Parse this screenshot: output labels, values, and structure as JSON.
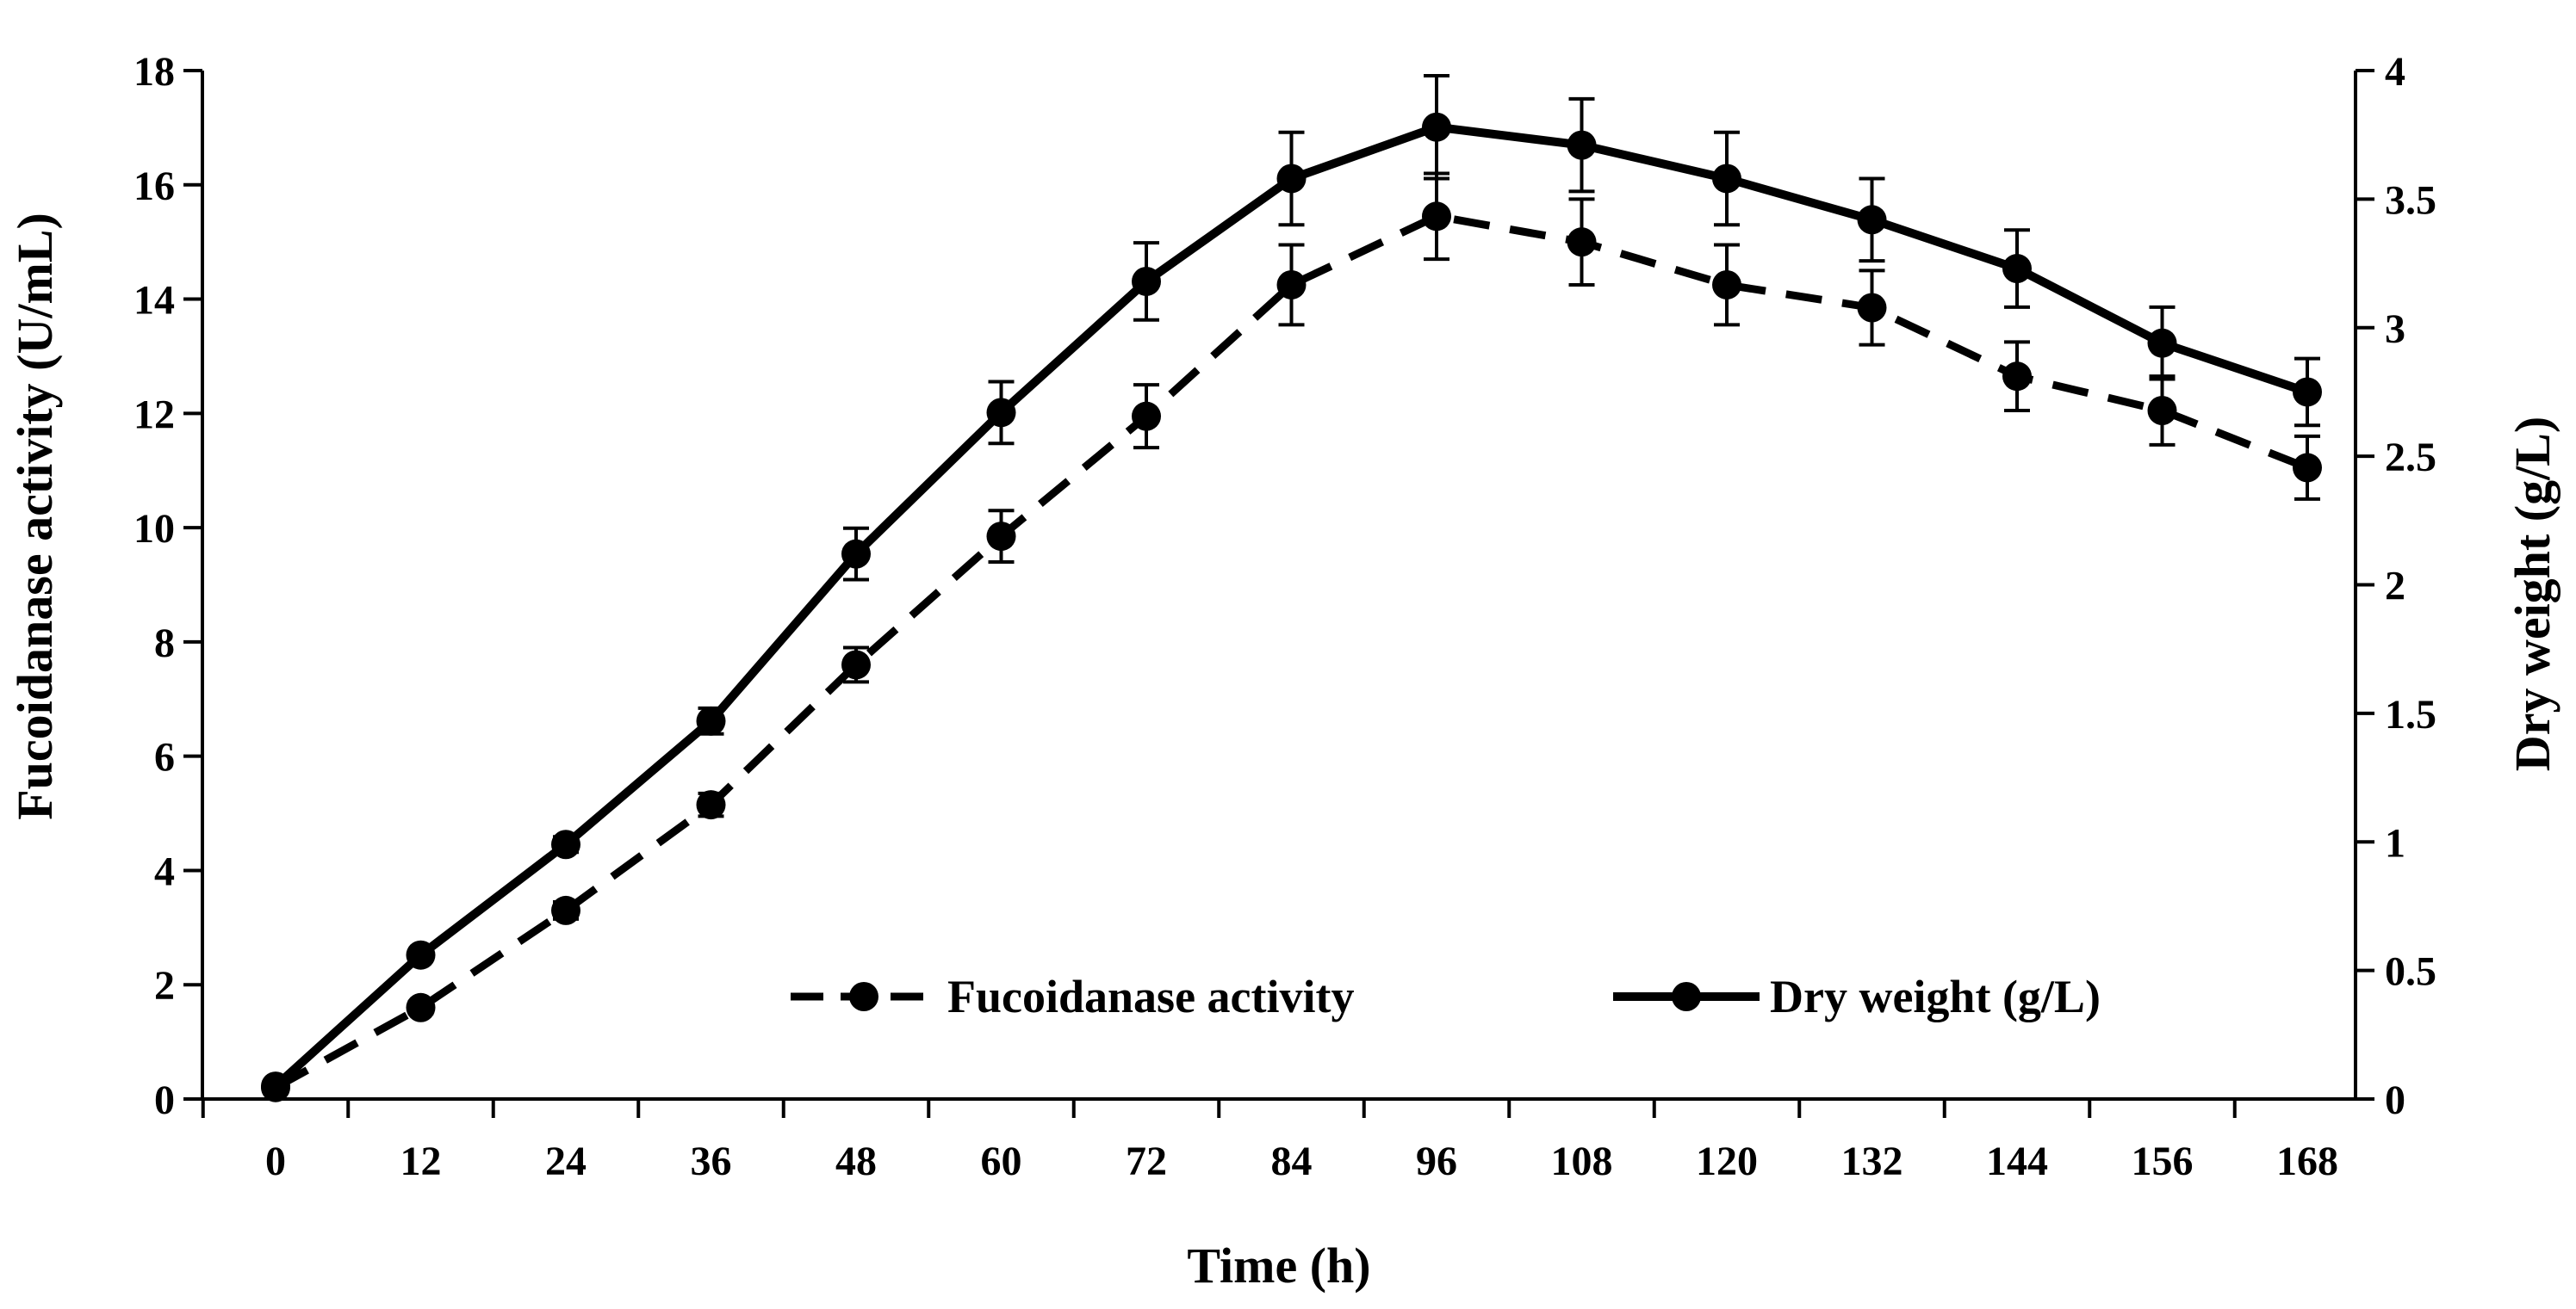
{
  "chart_data": {
    "type": "line",
    "title": "",
    "xlabel": "Time (h)",
    "ylabel_left": "Fucoidanase activity (U/mL)",
    "ylabel_right": "Dry weight (g/L)",
    "x": [
      0,
      12,
      24,
      36,
      48,
      60,
      72,
      84,
      96,
      108,
      120,
      132,
      144,
      156,
      168
    ],
    "x_tick_labels": [
      "0",
      "12",
      "24",
      "36",
      "48",
      "60",
      "72",
      "84",
      "96",
      "108",
      "120",
      "132",
      "144",
      "156",
      "168"
    ],
    "ylim_left": [
      0,
      18
    ],
    "y_left_ticks": [
      "0",
      "2",
      "4",
      "6",
      "8",
      "10",
      "12",
      "14",
      "16",
      "18"
    ],
    "ylim_right": [
      0,
      4
    ],
    "y_right_ticks": [
      "0",
      "0.5",
      "1",
      "1.5",
      "2",
      "2.5",
      "3",
      "3.5",
      "4"
    ],
    "grid": false,
    "legend_position": "bottom-center",
    "series": [
      {
        "name": "Fucoidanase activity",
        "axis": "left",
        "line_style": "dashed",
        "color": "#000000",
        "values": [
          0.2,
          1.6,
          3.3,
          5.15,
          7.6,
          9.85,
          11.95,
          14.25,
          15.45,
          15.0,
          14.25,
          13.85,
          12.65,
          12.05,
          11.05
        ],
        "errors": [
          0.05,
          0.1,
          0.15,
          0.2,
          0.3,
          0.45,
          0.55,
          0.7,
          0.75,
          0.75,
          0.7,
          0.65,
          0.6,
          0.6,
          0.55
        ]
      },
      {
        "name": "Dry weight (g/L)",
        "axis": "right",
        "line_style": "solid",
        "color": "#000000",
        "values": [
          0.05,
          0.56,
          0.99,
          1.47,
          2.12,
          2.67,
          3.18,
          3.58,
          3.78,
          3.71,
          3.58,
          3.42,
          3.23,
          2.94,
          2.75
        ],
        "errors": [
          0.01,
          0.02,
          0.03,
          0.05,
          0.1,
          0.12,
          0.15,
          0.18,
          0.2,
          0.18,
          0.18,
          0.16,
          0.15,
          0.14,
          0.13
        ]
      }
    ]
  }
}
